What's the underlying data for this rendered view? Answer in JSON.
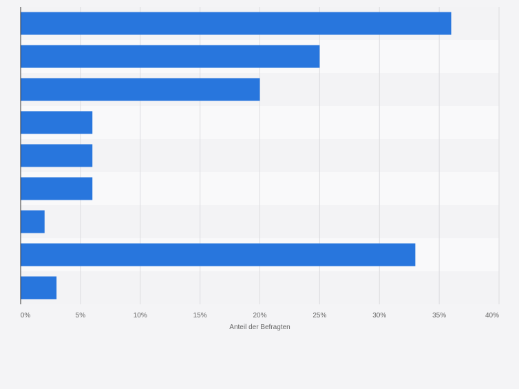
{
  "chart_data": {
    "type": "bar",
    "orientation": "horizontal",
    "categories": [
      "",
      "",
      "",
      "",
      "",
      "",
      "",
      "",
      ""
    ],
    "values": [
      36,
      25,
      20,
      6,
      6,
      6,
      2,
      33,
      3
    ],
    "xlabel": "Anteil der Befragten",
    "ylabel": "",
    "xlim": [
      0,
      40
    ],
    "x_ticks": [
      "0%",
      "5%",
      "10%",
      "15%",
      "20%",
      "25%",
      "30%",
      "35%",
      "40%"
    ],
    "grid": true,
    "bar_color": "#2876dd",
    "stripe_colors": [
      "#f3f3f5",
      "#f9f9fa"
    ],
    "background_color": "#f4f4f6",
    "gridline_color": "#dcdcdf",
    "text_color": "#666666"
  }
}
